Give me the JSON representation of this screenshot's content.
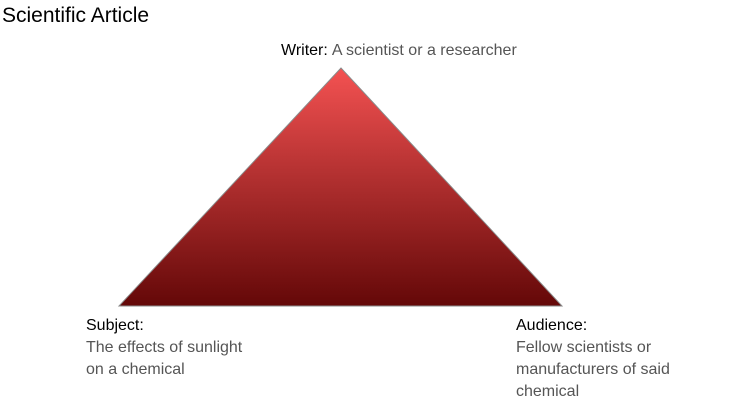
{
  "title": "Scientific Article",
  "writer": {
    "label": "Writer:",
    "description": "A scientist or a researcher"
  },
  "subject": {
    "label": "Subject:",
    "description": "The effects of sunlight\non a chemical"
  },
  "audience": {
    "label": "Audience:",
    "description": "Fellow scientists or\nmanufacturers of said\nchemical"
  },
  "colors": {
    "triangle_top": "#f45252",
    "triangle_bottom": "#640808",
    "outline": "#8a8a8a"
  }
}
